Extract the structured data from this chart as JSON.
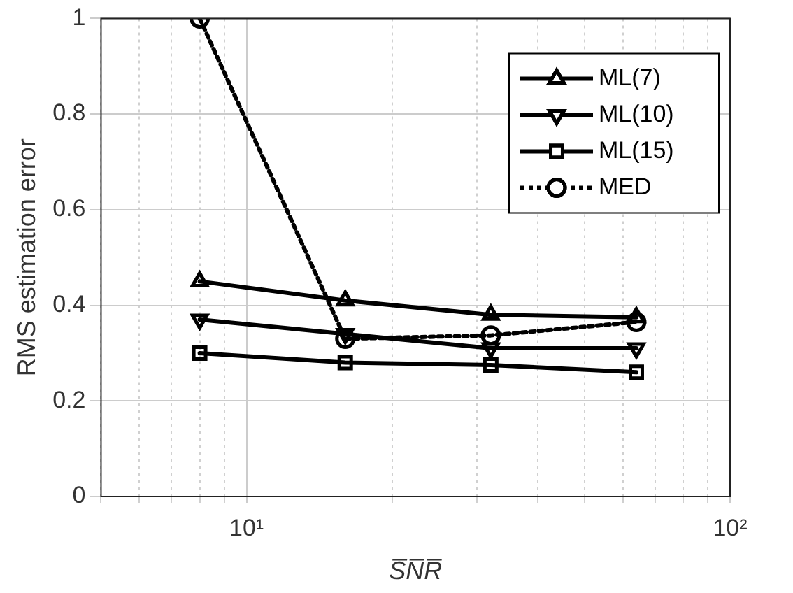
{
  "chart_data": {
    "type": "line",
    "xlabel": "S̅N̅R̅",
    "ylabel": "RMS estimation error",
    "x": [
      8,
      16,
      32,
      64
    ],
    "series": [
      {
        "name": "ML(7)",
        "color": "#000000",
        "values": [
          0.45,
          0.41,
          0.38,
          0.375
        ],
        "marker": "triangle",
        "line_style": "solid"
      },
      {
        "name": "ML(10)",
        "color": "#000000",
        "values": [
          0.37,
          0.34,
          0.31,
          0.31
        ],
        "marker": "triangle_down",
        "line_style": "solid"
      },
      {
        "name": "ML(15)",
        "color": "#000000",
        "values": [
          0.3,
          0.28,
          0.275,
          0.26
        ],
        "marker": "square",
        "line_style": "solid"
      },
      {
        "name": "MED",
        "color": "#000000",
        "values": [
          1.0,
          0.33,
          0.337,
          0.365
        ],
        "marker": "circle",
        "line_style": "dotted"
      }
    ],
    "log": "x",
    "xlim": [
      5,
      100
    ],
    "xticks": [
      {
        "value": 5,
        "label": null
      },
      {
        "value": 6,
        "label": null
      },
      {
        "value": 7,
        "label": null
      },
      {
        "value": 8,
        "label": null
      },
      {
        "value": 9,
        "label": null
      },
      {
        "value": 10,
        "label": "10¹"
      },
      {
        "value": 20,
        "label": null
      },
      {
        "value": 30,
        "label": null
      },
      {
        "value": 40,
        "label": null
      },
      {
        "value": 50,
        "label": null
      },
      {
        "value": 60,
        "label": null
      },
      {
        "value": 70,
        "label": null
      },
      {
        "value": 80,
        "label": null
      },
      {
        "value": 90,
        "label": null
      },
      {
        "value": 100,
        "label": "10²"
      }
    ],
    "ylim": [
      0,
      1
    ],
    "yticks": [
      0,
      0.2,
      0.4,
      0.6,
      0.8,
      1
    ],
    "grid": true,
    "legend": "top right"
  }
}
